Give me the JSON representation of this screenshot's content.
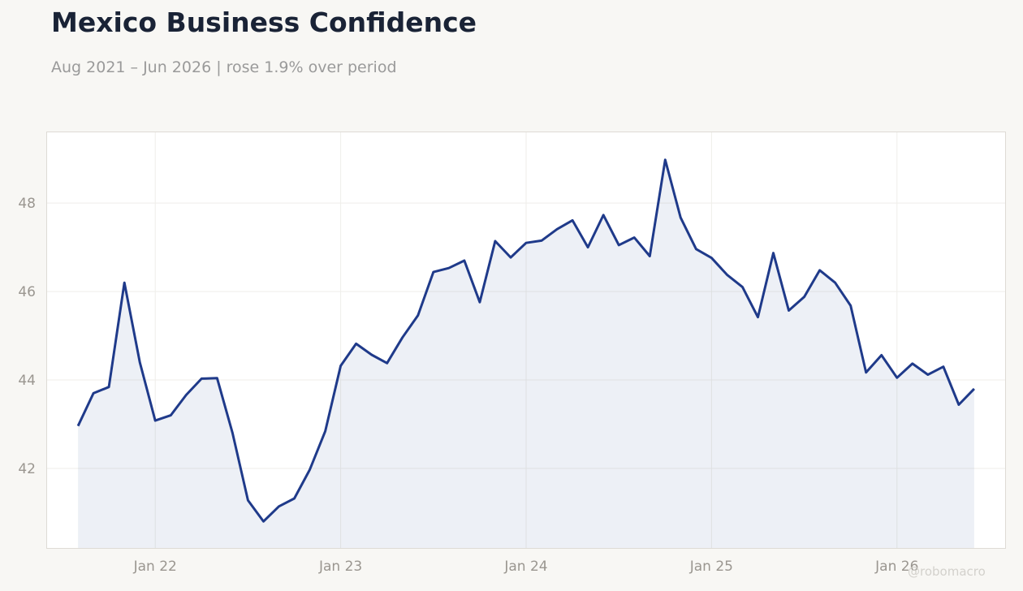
{
  "header": {
    "title": "Mexico Business Confidence",
    "subtitle": "Aug 2021 – Jun 2026 | rose 1.9% over period"
  },
  "watermark": "@robomacro",
  "colors": {
    "line": "#1f3a8a",
    "fill": "#1f3a8a",
    "background": "#f8f7f4",
    "plot_bg": "#ffffff"
  },
  "chart_data": {
    "type": "area",
    "title": "Mexico Business Confidence",
    "subtitle": "Aug 2021 – Jun 2026 | rose 1.9% over period",
    "xlabel": "",
    "ylabel": "",
    "x_ticks": [
      "Jan 22",
      "Jan 23",
      "Jan 24",
      "Jan 25",
      "Jan 26"
    ],
    "y_ticks": [
      42,
      44,
      46,
      48
    ],
    "ylim": [
      40.2,
      49.6
    ],
    "xlim": [
      "2021-06",
      "2026-08"
    ],
    "grid": true,
    "series": [
      {
        "x": [
          "2021-08",
          "2021-09",
          "2021-10",
          "2021-11",
          "2021-12",
          "2022-01",
          "2022-02",
          "2022-03",
          "2022-04",
          "2022-05",
          "2022-06",
          "2022-07",
          "2022-08",
          "2022-09",
          "2022-10",
          "2022-11",
          "2022-12",
          "2023-01",
          "2023-02",
          "2023-03",
          "2023-04",
          "2023-05",
          "2023-06",
          "2023-07",
          "2023-08",
          "2023-09",
          "2023-10",
          "2023-11",
          "2023-12",
          "2024-01",
          "2024-02",
          "2024-03",
          "2024-04",
          "2024-05",
          "2024-06",
          "2024-07",
          "2024-08",
          "2024-09",
          "2024-10",
          "2024-11",
          "2024-12",
          "2025-01",
          "2025-02",
          "2025-03",
          "2025-04",
          "2025-05",
          "2025-06",
          "2025-07",
          "2025-08",
          "2025-09",
          "2025-10",
          "2025-11",
          "2025-12",
          "2026-01",
          "2026-02",
          "2026-03",
          "2026-04",
          "2026-05",
          "2026-06"
        ],
        "values": [
          42.96,
          43.7,
          43.84,
          46.2,
          44.4,
          43.08,
          43.2,
          43.66,
          44.03,
          44.04,
          42.8,
          41.28,
          40.8,
          41.14,
          41.32,
          41.97,
          42.84,
          44.32,
          44.82,
          44.57,
          44.38,
          44.96,
          45.46,
          46.44,
          46.53,
          46.7,
          45.76,
          47.14,
          46.77,
          47.1,
          47.15,
          47.41,
          47.61,
          47.0,
          47.73,
          47.05,
          47.22,
          46.8,
          48.98,
          47.67,
          46.96,
          46.76,
          46.38,
          46.1,
          45.42,
          46.87,
          45.57,
          45.88,
          46.48,
          46.2,
          45.68,
          44.17,
          44.56,
          44.05,
          44.37,
          44.12,
          44.3,
          43.44,
          43.8
        ]
      }
    ]
  }
}
